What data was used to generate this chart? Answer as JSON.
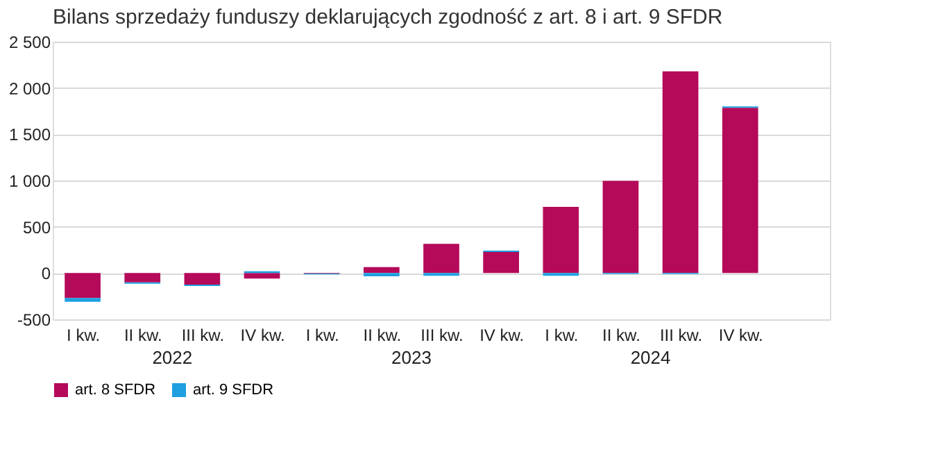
{
  "chart_data": {
    "type": "bar",
    "title": "Bilans sprzedaży funduszy deklarujących zgodność z art. 8 i art. 9 SFDR",
    "categories": [
      "I kw.",
      "II kw.",
      "III kw.",
      "IV kw.",
      "I kw.",
      "II kw.",
      "III kw.",
      "IV kw.",
      "I kw.",
      "II kw.",
      "III kw.",
      "IV kw."
    ],
    "stacked": true,
    "series": [
      {
        "name": "art. 8 SFDR",
        "color": "#b5095a",
        "values": [
          -270,
          -100,
          -125,
          -60,
          -5,
          65,
          315,
          227,
          715,
          996,
          2180,
          1785
        ]
      },
      {
        "name": "art. 9 SFDR",
        "color": "#1f9fe0",
        "values": [
          -40,
          -15,
          -15,
          20,
          -10,
          -35,
          -30,
          15,
          -30,
          -10,
          -10,
          15
        ]
      }
    ],
    "ylim": [
      -500,
      2500
    ],
    "yticks": [
      -500,
      0,
      500,
      {
        "value": 1000,
        "label": "1 000"
      },
      {
        "value": 1500,
        "label": "1 500"
      },
      {
        "value": 2000,
        "label": "2 000"
      },
      {
        "value": 2500,
        "label": "2 500"
      }
    ],
    "annotations": [
      "2022",
      "2023",
      "2024"
    ],
    "grid": "y",
    "legend": "bottom"
  }
}
